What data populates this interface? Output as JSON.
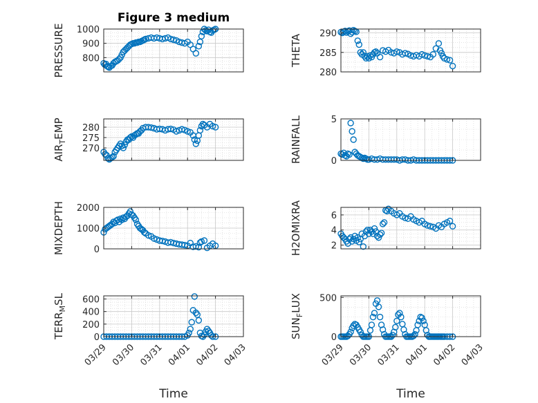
{
  "figure": {
    "title": "Figure 3 medium",
    "xlabel": "Time",
    "marker_color": "#0072BD",
    "x_ticks": [
      "03/29",
      "03/30",
      "03/31",
      "04/01",
      "04/02",
      "04/03"
    ],
    "x_range": [
      0,
      5
    ]
  },
  "chart_data": [
    {
      "type": "scatter",
      "ylabel": "PRESSURE",
      "ylim": [
        700,
        1000
      ],
      "yticks": [
        800,
        900,
        1000
      ],
      "grid": true,
      "x": [
        0.0,
        0.04,
        0.08,
        0.12,
        0.16,
        0.2,
        0.25,
        0.3,
        0.35,
        0.4,
        0.45,
        0.5,
        0.55,
        0.6,
        0.65,
        0.7,
        0.75,
        0.8,
        0.85,
        0.9,
        0.95,
        1.0,
        1.05,
        1.1,
        1.15,
        1.2,
        1.25,
        1.3,
        1.35,
        1.4,
        1.45,
        1.5,
        1.6,
        1.7,
        1.8,
        1.9,
        2.0,
        2.1,
        2.2,
        2.3,
        2.4,
        2.5,
        2.6,
        2.7,
        2.8,
        2.9,
        3.0,
        3.1,
        3.2,
        3.3,
        3.4,
        3.45,
        3.5,
        3.55,
        3.6,
        3.65,
        3.7,
        3.75,
        3.8,
        3.85,
        3.9,
        3.95,
        4.0
      ],
      "y": [
        760,
        750,
        755,
        740,
        735,
        730,
        740,
        745,
        760,
        770,
        775,
        780,
        790,
        800,
        820,
        840,
        850,
        860,
        870,
        880,
        890,
        895,
        900,
        900,
        905,
        905,
        910,
        910,
        915,
        920,
        925,
        930,
        935,
        940,
        935,
        940,
        935,
        930,
        935,
        940,
        930,
        925,
        920,
        910,
        905,
        900,
        910,
        890,
        860,
        830,
        880,
        910,
        950,
        980,
        1000,
        990,
        985,
        995,
        980,
        975,
        990,
        995,
        1000
      ]
    },
    {
      "type": "scatter",
      "ylabel": "THETA",
      "ylim": [
        280,
        291
      ],
      "yticks": [
        280,
        285,
        290
      ],
      "grid": true,
      "x": [
        0.0,
        0.05,
        0.1,
        0.15,
        0.2,
        0.25,
        0.3,
        0.35,
        0.4,
        0.45,
        0.5,
        0.55,
        0.6,
        0.65,
        0.7,
        0.75,
        0.8,
        0.85,
        0.9,
        0.95,
        1.0,
        1.05,
        1.1,
        1.15,
        1.2,
        1.25,
        1.3,
        1.4,
        1.5,
        1.6,
        1.7,
        1.8,
        1.9,
        2.0,
        2.1,
        2.2,
        2.3,
        2.4,
        2.5,
        2.6,
        2.7,
        2.8,
        2.9,
        3.0,
        3.1,
        3.2,
        3.3,
        3.4,
        3.5,
        3.55,
        3.6,
        3.65,
        3.7,
        3.8,
        3.9,
        4.0
      ],
      "y": [
        290.2,
        290.0,
        290.3,
        290.5,
        290.1,
        290.4,
        290.6,
        289.8,
        290.2,
        290.7,
        290.5,
        290.3,
        288.0,
        287.0,
        285.0,
        284.5,
        285.0,
        284.0,
        283.5,
        284.0,
        283.5,
        284.2,
        283.8,
        284.5,
        285.0,
        285.2,
        284.8,
        283.8,
        285.5,
        285.2,
        285.6,
        285.0,
        284.8,
        285.2,
        285.0,
        284.5,
        284.8,
        284.6,
        284.2,
        284.0,
        284.3,
        284.0,
        284.5,
        284.2,
        284.0,
        283.8,
        284.5,
        286.0,
        287.3,
        285.5,
        284.8,
        284.0,
        283.5,
        283.2,
        283.0,
        281.5
      ]
    },
    {
      "type": "scatter",
      "ylabel": "AIR_TEMP",
      "ylim": [
        264,
        284
      ],
      "yticks": [
        270,
        275,
        280
      ],
      "grid": true,
      "x": [
        0.0,
        0.05,
        0.1,
        0.15,
        0.2,
        0.25,
        0.3,
        0.35,
        0.4,
        0.45,
        0.5,
        0.55,
        0.6,
        0.65,
        0.7,
        0.75,
        0.8,
        0.85,
        0.9,
        0.95,
        1.0,
        1.05,
        1.1,
        1.15,
        1.2,
        1.25,
        1.3,
        1.35,
        1.4,
        1.5,
        1.6,
        1.7,
        1.8,
        1.9,
        2.0,
        2.1,
        2.2,
        2.3,
        2.4,
        2.5,
        2.6,
        2.7,
        2.8,
        2.9,
        3.0,
        3.1,
        3.2,
        3.25,
        3.3,
        3.35,
        3.4,
        3.45,
        3.5,
        3.55,
        3.6,
        3.7,
        3.8,
        3.9,
        4.0
      ],
      "y": [
        268,
        267,
        266.5,
        265,
        264.5,
        265,
        265.5,
        266,
        268,
        269,
        270,
        271,
        272,
        271,
        270,
        271.5,
        273,
        274,
        274,
        275,
        275.5,
        275,
        276,
        276.5,
        277,
        277,
        278,
        278.5,
        279.5,
        280,
        280,
        279.8,
        279.5,
        279.0,
        279.2,
        279.0,
        278.5,
        279.0,
        279.2,
        278.8,
        278.0,
        278.5,
        279.0,
        278.6,
        278.0,
        277.5,
        276.0,
        274.0,
        272.0,
        273.5,
        276.0,
        278.5,
        280.5,
        281.5,
        281.0,
        280.0,
        281.5,
        280.5,
        280.0
      ]
    },
    {
      "type": "scatter",
      "ylabel": "RAINFALL",
      "ylim": [
        0,
        5
      ],
      "yticks": [
        0,
        5
      ],
      "grid": true,
      "x": [
        0.0,
        0.05,
        0.1,
        0.15,
        0.2,
        0.25,
        0.3,
        0.35,
        0.4,
        0.45,
        0.5,
        0.55,
        0.6,
        0.65,
        0.7,
        0.75,
        0.8,
        0.85,
        0.9,
        0.95,
        1.0,
        1.1,
        1.2,
        1.3,
        1.4,
        1.5,
        1.6,
        1.7,
        1.8,
        1.9,
        2.0,
        2.1,
        2.2,
        2.3,
        2.4,
        2.5,
        2.6,
        2.7,
        2.8,
        2.9,
        3.0,
        3.1,
        3.2,
        3.3,
        3.4,
        3.5,
        3.6,
        3.7,
        3.8,
        3.9,
        4.0
      ],
      "y": [
        0.8,
        0.7,
        0.9,
        0.6,
        0.5,
        0.8,
        0.7,
        4.5,
        3.5,
        2.5,
        1.0,
        0.8,
        0.6,
        0.5,
        0.4,
        0.3,
        0.2,
        0.3,
        0.2,
        0.1,
        0.1,
        0.2,
        0.1,
        0.1,
        0.2,
        0.1,
        0.1,
        0.1,
        0.1,
        0.1,
        0.1,
        0.0,
        0.1,
        0.1,
        0.0,
        0.0,
        0.1,
        0.0,
        0.0,
        0.0,
        0.0,
        0.0,
        0.0,
        0.0,
        0.0,
        0.0,
        0.0,
        0.0,
        0.0,
        0.0,
        0.0
      ]
    },
    {
      "type": "scatter",
      "ylabel": "MIXDEPTH",
      "ylim": [
        0,
        2000
      ],
      "yticks": [
        0,
        1000,
        2000
      ],
      "grid": true,
      "x": [
        0.0,
        0.05,
        0.1,
        0.15,
        0.2,
        0.25,
        0.3,
        0.35,
        0.4,
        0.45,
        0.5,
        0.55,
        0.6,
        0.65,
        0.7,
        0.75,
        0.8,
        0.85,
        0.9,
        0.95,
        1.0,
        1.05,
        1.1,
        1.15,
        1.2,
        1.25,
        1.3,
        1.35,
        1.4,
        1.45,
        1.5,
        1.6,
        1.7,
        1.8,
        1.9,
        2.0,
        2.1,
        2.2,
        2.3,
        2.4,
        2.5,
        2.6,
        2.7,
        2.8,
        2.9,
        3.0,
        3.1,
        3.2,
        3.3,
        3.4,
        3.45,
        3.5,
        3.6,
        3.7,
        3.8,
        3.9,
        4.0
      ],
      "y": [
        800,
        950,
        1000,
        1050,
        1100,
        1150,
        1200,
        1300,
        1250,
        1350,
        1400,
        1300,
        1450,
        1400,
        1500,
        1450,
        1550,
        1600,
        1700,
        1800,
        1650,
        1600,
        1500,
        1400,
        1200,
        1100,
        1000,
        950,
        900,
        800,
        750,
        650,
        600,
        500,
        450,
        400,
        380,
        350,
        300,
        320,
        280,
        250,
        220,
        200,
        180,
        150,
        280,
        100,
        120,
        80,
        300,
        350,
        400,
        50,
        150,
        250,
        150
      ]
    },
    {
      "type": "scatter",
      "ylabel": "H2OMIXRA",
      "ylim": [
        1.5,
        7
      ],
      "yticks": [
        2,
        4,
        6
      ],
      "grid": true,
      "x": [
        0.0,
        0.05,
        0.1,
        0.15,
        0.2,
        0.25,
        0.3,
        0.35,
        0.4,
        0.45,
        0.5,
        0.55,
        0.6,
        0.65,
        0.7,
        0.75,
        0.8,
        0.85,
        0.9,
        0.95,
        1.0,
        1.05,
        1.1,
        1.15,
        1.2,
        1.25,
        1.3,
        1.35,
        1.4,
        1.45,
        1.5,
        1.55,
        1.6,
        1.65,
        1.7,
        1.8,
        1.9,
        2.0,
        2.1,
        2.2,
        2.3,
        2.4,
        2.5,
        2.6,
        2.7,
        2.8,
        2.9,
        3.0,
        3.1,
        3.2,
        3.3,
        3.4,
        3.5,
        3.6,
        3.7,
        3.8,
        3.9,
        4.0
      ],
      "y": [
        3.5,
        3.2,
        3.0,
        2.8,
        2.5,
        2.2,
        2.8,
        3.0,
        2.5,
        2.8,
        3.2,
        2.6,
        3.0,
        2.4,
        2.8,
        3.5,
        1.8,
        3.2,
        3.8,
        4.0,
        3.5,
        4.0,
        3.8,
        3.5,
        4.2,
        3.8,
        3.2,
        3.0,
        3.4,
        3.6,
        4.8,
        5.0,
        6.6,
        6.5,
        6.8,
        6.5,
        6.2,
        6.0,
        6.2,
        5.8,
        5.6,
        5.5,
        5.8,
        5.4,
        5.2,
        5.0,
        5.2,
        4.8,
        4.6,
        4.5,
        4.4,
        4.2,
        4.6,
        4.4,
        4.8,
        5.0,
        5.2,
        4.5
      ]
    },
    {
      "type": "scatter",
      "ylabel": "TERR_MSL",
      "ylim": [
        0,
        650
      ],
      "yticks": [
        0,
        200,
        400,
        600
      ],
      "grid": true,
      "x": [
        0.0,
        0.1,
        0.2,
        0.3,
        0.4,
        0.5,
        0.6,
        0.7,
        0.8,
        0.9,
        1.0,
        1.1,
        1.2,
        1.3,
        1.4,
        1.5,
        1.6,
        1.7,
        1.8,
        1.9,
        2.0,
        2.1,
        2.2,
        2.3,
        2.4,
        2.5,
        2.6,
        2.7,
        2.8,
        2.9,
        3.0,
        3.05,
        3.1,
        3.15,
        3.2,
        3.25,
        3.3,
        3.35,
        3.4,
        3.45,
        3.5,
        3.55,
        3.6,
        3.65,
        3.7,
        3.75,
        3.8,
        3.85,
        3.9,
        4.0
      ],
      "y": [
        0,
        0,
        0,
        0,
        0,
        0,
        0,
        0,
        0,
        0,
        0,
        0,
        0,
        0,
        0,
        0,
        0,
        0,
        0,
        0,
        0,
        0,
        0,
        0,
        0,
        0,
        0,
        0,
        0,
        0,
        20,
        60,
        120,
        230,
        420,
        640,
        380,
        350,
        260,
        60,
        10,
        0,
        30,
        80,
        120,
        90,
        60,
        20,
        0,
        0
      ]
    },
    {
      "type": "scatter",
      "ylabel": "SUN_FLUX",
      "ylim": [
        0,
        520
      ],
      "yticks": [
        0,
        500
      ],
      "grid": true,
      "x": [
        0.0,
        0.05,
        0.1,
        0.15,
        0.2,
        0.25,
        0.3,
        0.35,
        0.4,
        0.45,
        0.5,
        0.55,
        0.6,
        0.65,
        0.7,
        0.75,
        0.8,
        0.85,
        0.9,
        0.95,
        1.0,
        1.05,
        1.1,
        1.15,
        1.2,
        1.25,
        1.3,
        1.35,
        1.4,
        1.45,
        1.5,
        1.55,
        1.6,
        1.65,
        1.7,
        1.75,
        1.8,
        1.85,
        1.9,
        1.95,
        2.0,
        2.05,
        2.1,
        2.15,
        2.2,
        2.25,
        2.3,
        2.35,
        2.4,
        2.45,
        2.5,
        2.55,
        2.6,
        2.65,
        2.7,
        2.75,
        2.8,
        2.85,
        2.9,
        2.95,
        3.0,
        3.05,
        3.1,
        3.15,
        3.2,
        3.25,
        3.3,
        3.35,
        3.4,
        3.45,
        3.5,
        3.55,
        3.6,
        3.65,
        3.7,
        3.8,
        3.9,
        4.0
      ],
      "y": [
        0,
        0,
        0,
        0,
        0,
        10,
        30,
        60,
        110,
        140,
        160,
        150,
        120,
        90,
        60,
        20,
        0,
        0,
        0,
        0,
        0,
        80,
        150,
        250,
        300,
        420,
        460,
        380,
        250,
        150,
        90,
        30,
        0,
        0,
        0,
        0,
        0,
        20,
        60,
        120,
        200,
        280,
        300,
        250,
        160,
        90,
        30,
        0,
        0,
        0,
        0,
        0,
        10,
        30,
        80,
        150,
        200,
        250,
        240,
        200,
        150,
        80,
        20,
        0,
        0,
        0,
        0,
        0,
        0,
        0,
        0,
        0,
        0,
        0,
        0,
        0,
        0,
        0
      ]
    }
  ]
}
